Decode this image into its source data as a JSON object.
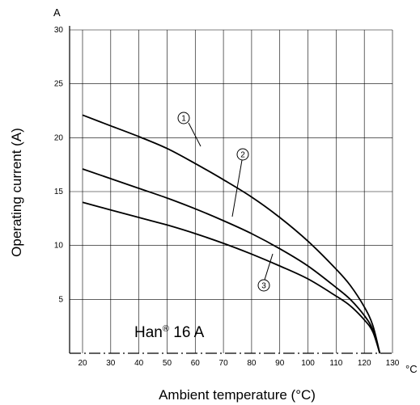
{
  "chart_data": {
    "type": "line",
    "xlabel": "Ambient temperature (°C)",
    "ylabel": "Operating current (A)",
    "x_unit": "°C",
    "y_unit": "A",
    "xlim": [
      20,
      130
    ],
    "ylim": [
      0,
      30
    ],
    "x_ticks": [
      20,
      30,
      40,
      50,
      60,
      70,
      80,
      90,
      100,
      110,
      120,
      130
    ],
    "y_ticks": [
      5,
      10,
      15,
      20,
      25,
      30
    ],
    "grid": true,
    "annotation": {
      "main": "Han",
      "sup": "®",
      "rest": " 16 A"
    },
    "series": [
      {
        "marker": "1",
        "x": [
          20,
          30,
          40,
          50,
          60,
          70,
          80,
          90,
          100,
          110,
          115,
          120,
          123,
          125.5
        ],
        "y": [
          22.1,
          21.1,
          20.1,
          19.0,
          17.6,
          16.1,
          14.5,
          12.6,
          10.4,
          7.8,
          6.3,
          4.3,
          2.6,
          0
        ]
      },
      {
        "marker": "2",
        "x": [
          20,
          30,
          40,
          50,
          60,
          70,
          80,
          90,
          100,
          110,
          115,
          120,
          123,
          125.5
        ],
        "y": [
          17.1,
          16.2,
          15.3,
          14.4,
          13.4,
          12.3,
          11.1,
          9.7,
          8.1,
          6.1,
          5.0,
          3.5,
          2.2,
          0
        ]
      },
      {
        "marker": "3",
        "x": [
          20,
          30,
          40,
          50,
          60,
          70,
          80,
          90,
          100,
          110,
          115,
          120,
          123,
          125.5
        ],
        "y": [
          14.0,
          13.3,
          12.6,
          11.9,
          11.1,
          10.2,
          9.2,
          8.1,
          6.9,
          5.3,
          4.4,
          3.1,
          2.0,
          0
        ]
      }
    ]
  }
}
